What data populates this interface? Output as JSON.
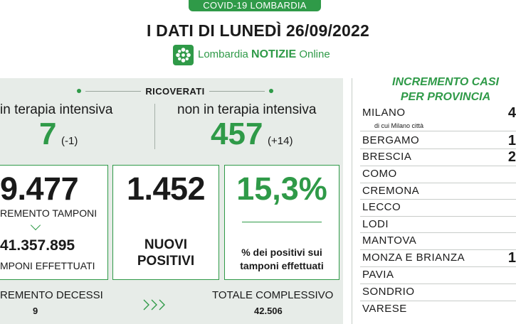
{
  "header": {
    "tag": "COVID-19 LOMBARDIA",
    "title": "I DATI DI LUNEDÌ 26/09/2022",
    "brand": {
      "part1": "Lombardia ",
      "part2": "NOTIZIE",
      "part3": " Online"
    }
  },
  "ricoverati": {
    "label": "RICOVERATI",
    "terapia_intensiva": {
      "label": "in terapia intensiva",
      "value": "7",
      "delta": "(-1)"
    },
    "non_terapia_intensiva": {
      "label": "non in terapia intensiva",
      "value": "457",
      "delta": "(+14)"
    }
  },
  "tamponi": {
    "value": "9.477",
    "label": "REMENTO TAMPONI",
    "total": "41.357.895",
    "total_label": "MPONI EFFETTUATI"
  },
  "nuovi_positivi": {
    "value": "1.452",
    "label": "NUOVI\nPOSITIVI"
  },
  "percentuale": {
    "value": "15,3%",
    "label": "% dei positivi sui\ntamponi effettuati"
  },
  "decessi": {
    "label": "REMENTO DECESSI",
    "value": "9"
  },
  "totale": {
    "label": "TOTALE COMPLESSIVO",
    "value": "42.506"
  },
  "province": {
    "title": "INCREMENTO CASI\nPER PROVINCIA",
    "milano_sub": "di cui Milano città",
    "items": [
      {
        "name": "MILANO",
        "value": "4"
      },
      {
        "name": "BERGAMO",
        "value": "1"
      },
      {
        "name": "BRESCIA",
        "value": "2"
      },
      {
        "name": "COMO",
        "value": ""
      },
      {
        "name": "CREMONA",
        "value": ""
      },
      {
        "name": "LECCO",
        "value": ""
      },
      {
        "name": "LODI",
        "value": ""
      },
      {
        "name": "MANTOVA",
        "value": ""
      },
      {
        "name": "MONZA E BRIANZA",
        "value": "1"
      },
      {
        "name": "PAVIA",
        "value": ""
      },
      {
        "name": "SONDRIO",
        "value": ""
      },
      {
        "name": "VARESE",
        "value": ""
      }
    ]
  },
  "colors": {
    "accent": "#2f9a48",
    "panel": "#e7ece8"
  }
}
